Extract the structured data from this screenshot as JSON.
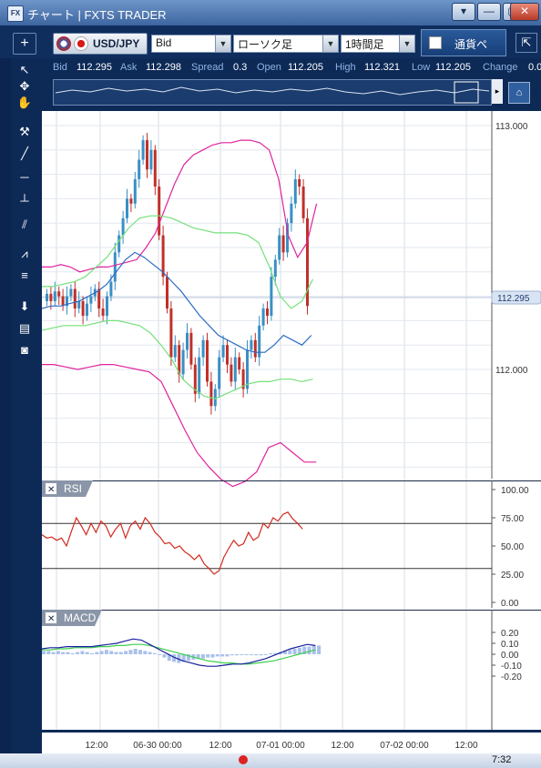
{
  "window": {
    "title": "チャート | FXTS TRADER",
    "app_icon": "FX",
    "controls": [
      "▾",
      "—",
      "▢",
      "✕"
    ]
  },
  "toolbar": {
    "add_label": "+",
    "symbol": "USD/JPY",
    "price_type": "Bid",
    "chart_type": "ローソク足",
    "timeframe": "1時間足",
    "currency_label": "通貨ペ",
    "expand_label": "⇱"
  },
  "quote": {
    "bid_label": "Bid",
    "bid": "112.295",
    "ask_label": "Ask",
    "ask": "112.298",
    "spread_label": "Spread",
    "spread": "0.3",
    "open_label": "Open",
    "open": "112.205",
    "high_label": "High",
    "high": "112.321",
    "low_label": "Low",
    "low": "112.205",
    "change_label": "Change",
    "change": "0.0"
  },
  "left_tools": [
    {
      "name": "cursor-icon",
      "glyph": "↖"
    },
    {
      "name": "crosshair-icon",
      "glyph": "✥"
    },
    {
      "name": "hand-icon",
      "glyph": "✋"
    },
    {
      "name": "hammer-icon",
      "glyph": "⚒"
    },
    {
      "name": "trendline-icon",
      "glyph": "╱"
    },
    {
      "name": "horizontal-line-icon",
      "glyph": "─"
    },
    {
      "name": "vertical-line-icon",
      "glyph": "┴"
    },
    {
      "name": "channel-icon",
      "glyph": "⫽"
    },
    {
      "name": "fan-icon",
      "glyph": "⩘"
    },
    {
      "name": "fibonacci-icon",
      "glyph": "≡"
    },
    {
      "name": "download-icon",
      "glyph": "⬇"
    },
    {
      "name": "list-icon",
      "glyph": "▤"
    },
    {
      "name": "camera-icon",
      "glyph": "◙"
    }
  ],
  "chart_data": [
    {
      "type": "candlestick",
      "title": "",
      "y_ticks": [
        "113.000",
        "112.000"
      ],
      "current_price": "112.295",
      "indicators": [
        "Bollinger Bands",
        "Moving Average"
      ],
      "x_ticks": [
        "12:00",
        "06-30 00:00",
        "12:00",
        "07-01 00:00",
        "12:00",
        "07-02 00:00",
        "12:00"
      ],
      "colors": {
        "up": "#3a8fc4",
        "down": "#c0302a",
        "bb_outer": "#e0239e",
        "bb_inner": "#74e07a",
        "mid": "#2b6cc4"
      }
    },
    {
      "type": "line",
      "title": "RSI",
      "y_ticks": [
        "100.00",
        "75.00",
        "50.00",
        "25.00",
        "0.00"
      ],
      "levels": [
        70,
        30
      ],
      "values": [
        60,
        57,
        58,
        55,
        57,
        50,
        63,
        75,
        68,
        60,
        70,
        62,
        72,
        68,
        58,
        65,
        70,
        57,
        68,
        72,
        65,
        75,
        70,
        62,
        58,
        52,
        53,
        48,
        50,
        45,
        42,
        38,
        42,
        34,
        30,
        25,
        28,
        40,
        48,
        55,
        50,
        52,
        62,
        55,
        58,
        70,
        66,
        75,
        72,
        78,
        80,
        74,
        70,
        65
      ]
    },
    {
      "type": "histogram+line",
      "title": "MACD",
      "y_ticks": [
        "0.20",
        "0.10",
        "0.00",
        "-0.10",
        "-0.20"
      ]
    }
  ]
}
